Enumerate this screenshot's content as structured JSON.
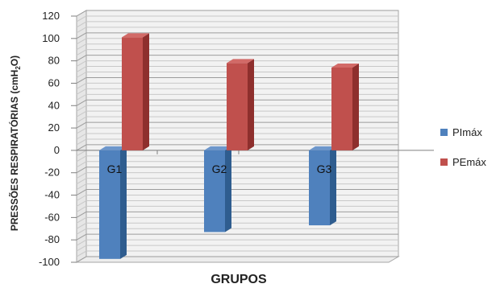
{
  "chart_data": {
    "type": "bar",
    "title": "",
    "xlabel": "GRUPOS",
    "ylabel": "PRESSÕES RESPIRATÓRIAS (cmH2O)",
    "ylabel_parts": {
      "prefix": "PRESSÕES RESPIRATÓRIAS (cmH",
      "sub": "2",
      "suffix": "O)"
    },
    "categories": [
      "G1",
      "G2",
      "G3"
    ],
    "series": [
      {
        "name": "PImáx",
        "values": [
          -97,
          -73,
          -67
        ],
        "color": "#4f81bd",
        "side_color": "#2f5d8f",
        "top_color": "#6d97cc"
      },
      {
        "name": "PEmáx",
        "values": [
          101,
          78,
          74
        ],
        "color": "#c0504d",
        "side_color": "#8e2f2d",
        "top_color": "#d26a67"
      }
    ],
    "yticks": [
      120,
      100,
      80,
      60,
      40,
      20,
      0,
      -20,
      -40,
      -60,
      -80,
      -100
    ],
    "ylim": [
      -100,
      120
    ],
    "grid": true,
    "legend_position": "right",
    "style": "3d-column"
  }
}
